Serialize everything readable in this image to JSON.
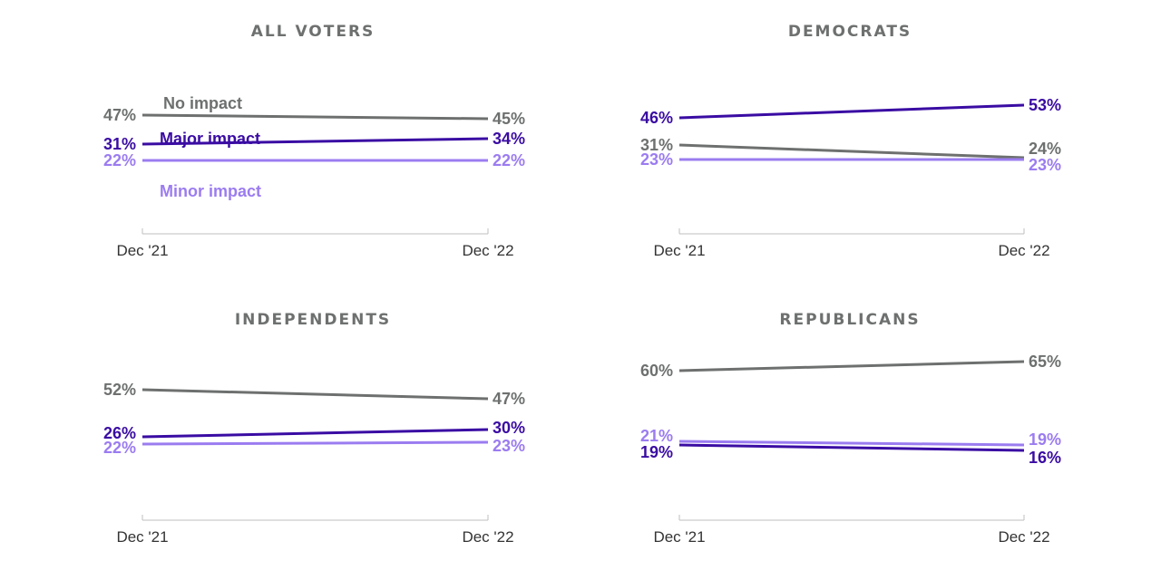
{
  "colors": {
    "no_impact": "#6d706f",
    "major_impact": "#3a0ca3",
    "minor_impact": "#9b7cf0",
    "title": "#6d706f",
    "tick": "#333333"
  },
  "chart_data": [
    {
      "type": "line",
      "title": "ALL VOTERS",
      "x": [
        "Dec '21",
        "Dec '22"
      ],
      "ylim": [
        0,
        100
      ],
      "series": [
        {
          "key": "no_impact",
          "name": "No impact",
          "values": [
            47,
            45
          ],
          "labels": [
            "47%",
            "45%"
          ],
          "show_name": true
        },
        {
          "key": "major_impact",
          "name": "Major impact",
          "values": [
            31,
            34
          ],
          "labels": [
            "31%",
            "34%"
          ],
          "show_name": true
        },
        {
          "key": "minor_impact",
          "name": "Minor impact",
          "values": [
            22,
            22
          ],
          "labels": [
            "22%",
            "22%"
          ],
          "show_name": true
        }
      ]
    },
    {
      "type": "line",
      "title": "DEMOCRATS",
      "x": [
        "Dec '21",
        "Dec '22"
      ],
      "ylim": [
        0,
        100
      ],
      "series": [
        {
          "key": "major_impact",
          "name": "Major impact",
          "values": [
            46,
            53
          ],
          "labels": [
            "46%",
            "53%"
          ],
          "show_name": false
        },
        {
          "key": "no_impact",
          "name": "No impact",
          "values": [
            31,
            24
          ],
          "labels": [
            "31%",
            "24%"
          ],
          "show_name": false
        },
        {
          "key": "minor_impact",
          "name": "Minor impact",
          "values": [
            23,
            23
          ],
          "labels": [
            "23%",
            "23%"
          ],
          "show_name": false
        }
      ]
    },
    {
      "type": "line",
      "title": "INDEPENDENTS",
      "x": [
        "Dec '21",
        "Dec '22"
      ],
      "ylim": [
        0,
        100
      ],
      "series": [
        {
          "key": "no_impact",
          "name": "No impact",
          "values": [
            52,
            47
          ],
          "labels": [
            "52%",
            "47%"
          ],
          "show_name": false
        },
        {
          "key": "major_impact",
          "name": "Major impact",
          "values": [
            26,
            30
          ],
          "labels": [
            "26%",
            "30%"
          ],
          "show_name": false
        },
        {
          "key": "minor_impact",
          "name": "Minor impact",
          "values": [
            22,
            23
          ],
          "labels": [
            "22%",
            "23%"
          ],
          "show_name": false
        }
      ]
    },
    {
      "type": "line",
      "title": "REPUBLICANS",
      "x": [
        "Dec '21",
        "Dec '22"
      ],
      "ylim": [
        0,
        100
      ],
      "series": [
        {
          "key": "no_impact",
          "name": "No impact",
          "values": [
            60,
            65
          ],
          "labels": [
            "60%",
            "65%"
          ],
          "show_name": false
        },
        {
          "key": "minor_impact",
          "name": "Minor impact",
          "values": [
            21,
            19
          ],
          "labels": [
            "21%",
            "19%"
          ],
          "show_name": false
        },
        {
          "key": "major_impact",
          "name": "Major impact",
          "values": [
            19,
            16
          ],
          "labels": [
            "19%",
            "16%"
          ],
          "show_name": false
        }
      ]
    }
  ]
}
